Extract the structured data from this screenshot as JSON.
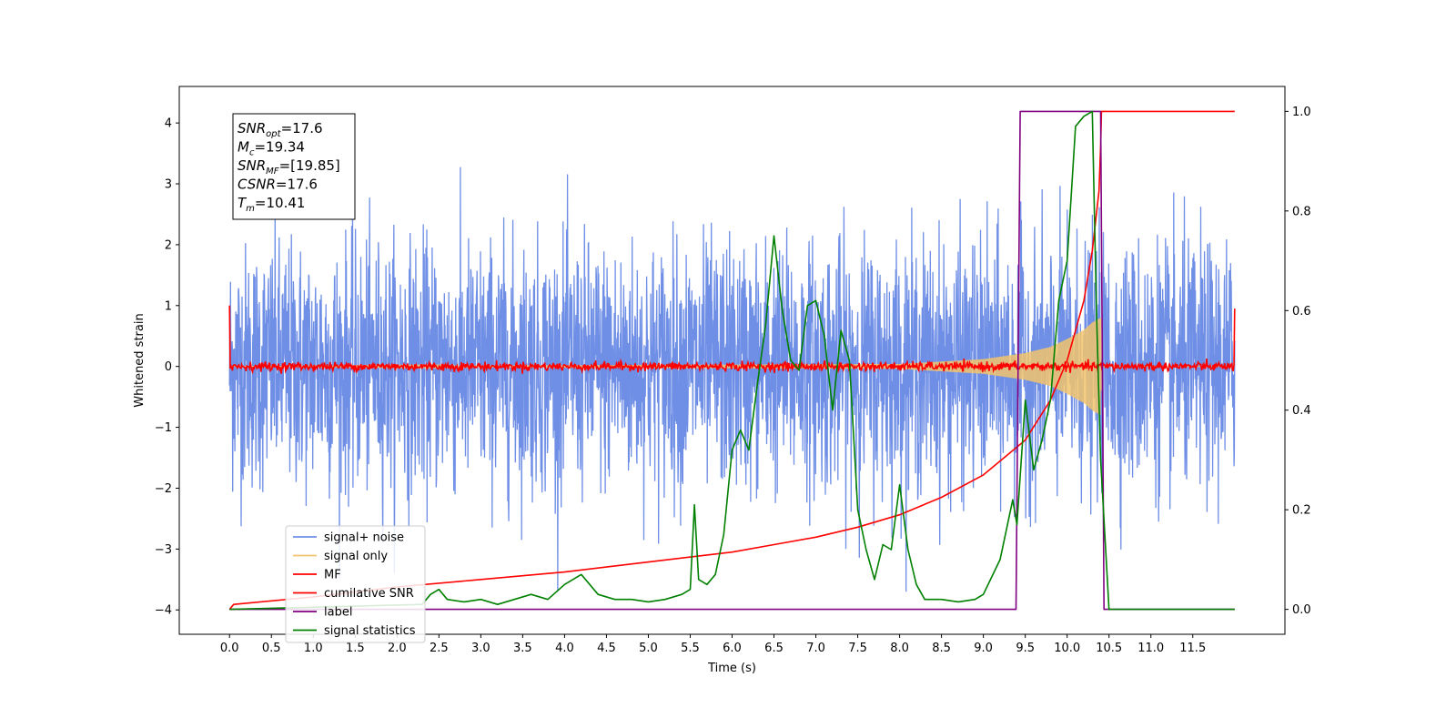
{
  "chart_data": {
    "type": "line",
    "xlabel": "Time (s)",
    "ylabel_left": "Whitened strain",
    "ylabel_right": "",
    "xlim": [
      -0.6,
      12.6
    ],
    "ylim_left": [
      -4.4,
      4.6
    ],
    "ylim_right": [
      -0.05,
      1.05
    ],
    "x_ticks": [
      0.0,
      0.5,
      1.0,
      1.5,
      2.0,
      2.5,
      3.0,
      3.5,
      4.0,
      4.5,
      5.0,
      5.5,
      6.0,
      6.5,
      7.0,
      7.5,
      8.0,
      8.5,
      9.0,
      9.5,
      10.0,
      10.5,
      11.0,
      11.5
    ],
    "x_tick_labels": [
      "0.0",
      "0.5",
      "1.0",
      "1.5",
      "2.0",
      "2.5",
      "3.0",
      "3.5",
      "4.0",
      "4.5",
      "5.0",
      "5.5",
      "6.0",
      "6.5",
      "7.0",
      "7.5",
      "8.0",
      "8.5",
      "9.0",
      "9.5",
      "10.0",
      "10.5",
      "11.0",
      "11.5"
    ],
    "y_left_ticks": [
      -4,
      -3,
      -2,
      -1,
      0,
      1,
      2,
      3,
      4
    ],
    "y_left_tick_labels": [
      "−4",
      "−3",
      "−2",
      "−1",
      "0",
      "1",
      "2",
      "3",
      "4"
    ],
    "y_right_ticks": [
      0.0,
      0.2,
      0.4,
      0.6,
      0.8,
      1.0
    ],
    "y_right_tick_labels": [
      "0.0",
      "0.2",
      "0.4",
      "0.6",
      "0.8",
      "1.0"
    ],
    "grid": false,
    "legend_position": "lower-left",
    "annotation_lines": [
      {
        "sym": "SNR",
        "sub": "opt",
        "val": "=17.6"
      },
      {
        "sym": "M",
        "sub": "c",
        "val": "=19.34"
      },
      {
        "sym": "SNR",
        "sub": "MF",
        "val": "=[19.85]"
      },
      {
        "sym": "CSNR",
        "sub": "",
        "val": "=17.6"
      },
      {
        "sym": "T",
        "sub": "m",
        "val": "=10.41"
      }
    ],
    "series": [
      {
        "name": "signal+ noise",
        "axis": "left",
        "color": "#6f8fe6",
        "kind": "noise_band",
        "x_range": [
          0.0,
          12.0
        ],
        "band_sigma": 1.0,
        "peak_range": [
          -3.7,
          3.5
        ]
      },
      {
        "name": "signal only",
        "axis": "left",
        "color": "#f2c46d",
        "kind": "chirp_envelope",
        "x_range": [
          0.0,
          12.0
        ],
        "envelope_x": [
          0.0,
          8.0,
          8.5,
          9.0,
          9.5,
          9.8,
          10.0,
          10.2,
          10.3,
          10.4,
          10.41,
          12.0
        ],
        "envelope_y": [
          0.0,
          0.04,
          0.08,
          0.12,
          0.22,
          0.32,
          0.45,
          0.6,
          0.72,
          0.8,
          0.0,
          0.0
        ]
      },
      {
        "name": "MF",
        "axis": "left",
        "color": "#ff0000",
        "kind": "noise_line",
        "x_range": [
          0.0,
          12.0
        ],
        "amplitude": 0.06,
        "start_value": 1.0,
        "end_value": 0.95
      },
      {
        "name": "cumilative SNR",
        "axis": "right",
        "color": "#ff0000",
        "x": [
          0.0,
          0.05,
          1.0,
          2.0,
          3.0,
          4.0,
          5.0,
          6.0,
          6.5,
          7.0,
          7.5,
          8.0,
          8.5,
          9.0,
          9.5,
          9.8,
          10.0,
          10.2,
          10.3,
          10.38,
          10.4,
          10.41,
          12.0
        ],
        "y": [
          0.0,
          0.01,
          0.025,
          0.045,
          0.06,
          0.075,
          0.095,
          0.115,
          0.13,
          0.145,
          0.165,
          0.19,
          0.225,
          0.27,
          0.34,
          0.42,
          0.5,
          0.62,
          0.72,
          0.84,
          0.93,
          1.0,
          1.0
        ]
      },
      {
        "name": "label",
        "axis": "right",
        "color": "#800080",
        "x": [
          0.0,
          9.39,
          9.44,
          10.4,
          10.44,
          12.0
        ],
        "y": [
          0.0,
          0.0,
          1.0,
          1.0,
          0.0,
          0.0
        ]
      },
      {
        "name": "signal statistics",
        "axis": "right",
        "color": "#008000",
        "x": [
          0.0,
          2.3,
          2.4,
          2.5,
          2.6,
          2.8,
          3.0,
          3.2,
          3.4,
          3.6,
          3.8,
          4.0,
          4.2,
          4.4,
          4.6,
          4.8,
          5.0,
          5.2,
          5.4,
          5.5,
          5.55,
          5.6,
          5.7,
          5.8,
          5.9,
          6.0,
          6.1,
          6.2,
          6.3,
          6.4,
          6.5,
          6.6,
          6.7,
          6.8,
          6.9,
          7.0,
          7.1,
          7.2,
          7.3,
          7.4,
          7.5,
          7.6,
          7.7,
          7.8,
          7.9,
          8.0,
          8.1,
          8.2,
          8.3,
          8.5,
          8.7,
          8.9,
          9.0,
          9.2,
          9.35,
          9.4,
          9.5,
          9.6,
          9.7,
          9.8,
          9.9,
          10.0,
          10.1,
          10.2,
          10.3,
          10.35,
          10.4,
          10.5,
          12.0
        ],
        "y": [
          0.0,
          0.01,
          0.03,
          0.04,
          0.02,
          0.015,
          0.02,
          0.01,
          0.02,
          0.03,
          0.02,
          0.05,
          0.07,
          0.03,
          0.02,
          0.02,
          0.015,
          0.02,
          0.03,
          0.04,
          0.21,
          0.06,
          0.05,
          0.07,
          0.15,
          0.32,
          0.36,
          0.32,
          0.45,
          0.57,
          0.75,
          0.6,
          0.5,
          0.48,
          0.61,
          0.62,
          0.55,
          0.4,
          0.56,
          0.5,
          0.2,
          0.12,
          0.06,
          0.13,
          0.12,
          0.25,
          0.12,
          0.05,
          0.02,
          0.02,
          0.015,
          0.02,
          0.03,
          0.1,
          0.22,
          0.17,
          0.42,
          0.28,
          0.34,
          0.42,
          0.62,
          0.7,
          0.97,
          0.99,
          1.0,
          0.6,
          0.3,
          0.0,
          0.0
        ]
      }
    ]
  }
}
